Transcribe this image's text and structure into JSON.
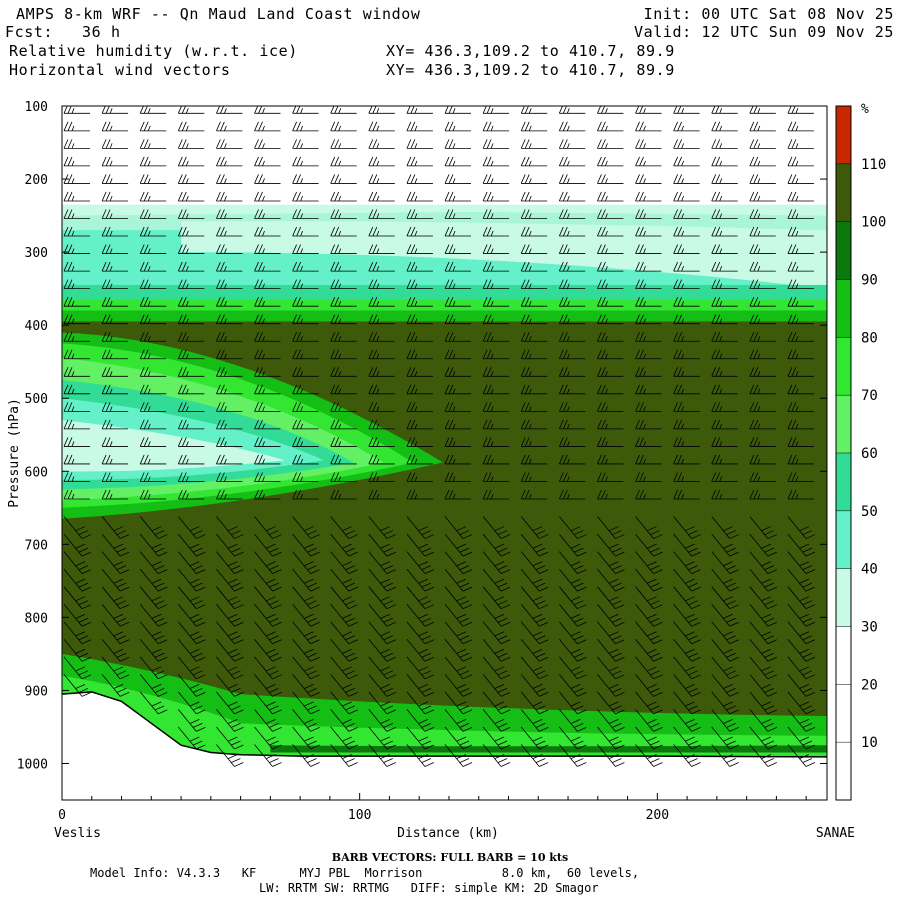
{
  "header": {
    "title": "AMPS 8-km WRF -- Qn Maud Land Coast window",
    "fcst": "Fcst:   36 h",
    "init": "Init: 00 UTC Sat 08 Nov 25",
    "valid": "Valid: 12 UTC Sun 09 Nov 25",
    "field1": "Relative humidity (w.r.t. ice)",
    "field2": "Horizontal wind vectors",
    "xy1": "XY= 436.3,109.2 to 410.7, 89.9",
    "xy2": "XY= 436.3,109.2 to 410.7, 89.9"
  },
  "chart_data": {
    "type": "heatmap",
    "title": "Relative humidity (w.r.t. ice)",
    "xlabel": "Distance (km)",
    "ylabel": "Pressure (hPa)",
    "xlim": [
      0,
      257
    ],
    "ylim": [
      1050,
      100
    ],
    "x_ticks": [
      0,
      100,
      200
    ],
    "y_ticks": [
      100,
      200,
      300,
      400,
      500,
      600,
      700,
      800,
      900,
      1000
    ],
    "x_start_label": "Veslis",
    "x_end_label": "SANAE",
    "colorbar": {
      "unit": "%",
      "levels": [
        10,
        20,
        30,
        40,
        50,
        60,
        70,
        80,
        90,
        100,
        110
      ],
      "colors": [
        "#ffffff",
        "#ffffff",
        "#ffffff",
        "#c8fae6",
        "#64f0c8",
        "#32dc96",
        "#64f064",
        "#32e632",
        "#14be14",
        "#0a780a",
        "#3c5a0a",
        "#c82800"
      ]
    },
    "terrain_surface": [
      {
        "x": 0,
        "p": 905
      },
      {
        "x": 10,
        "p": 902
      },
      {
        "x": 20,
        "p": 915
      },
      {
        "x": 30,
        "p": 945
      },
      {
        "x": 40,
        "p": 975
      },
      {
        "x": 50,
        "p": 985
      },
      {
        "x": 60,
        "p": 988
      },
      {
        "x": 80,
        "p": 990
      },
      {
        "x": 100,
        "p": 990
      },
      {
        "x": 150,
        "p": 990
      },
      {
        "x": 200,
        "p": 990
      },
      {
        "x": 257,
        "p": 991
      }
    ],
    "rh_regions_note": "dry (<40%) 240-360 hPa and 540-610 hPa wedge; saturated (>100%) 400-900 hPa",
    "wind_barbs": "westerly/north-westerly barbs aloft ~ 20-40 kt; turning southerly near surface"
  },
  "footer": {
    "barb_note": "BARB VECTORS:  FULL BARB = 10 kts",
    "model_line1": "Model Info: V4.3.3   KF      MYJ PBL  Morrison           8.0 km,  60 levels,",
    "model_line2": "LW: RRTM SW: RRTMG   DIFF: simple KM: 2D Smagor"
  }
}
